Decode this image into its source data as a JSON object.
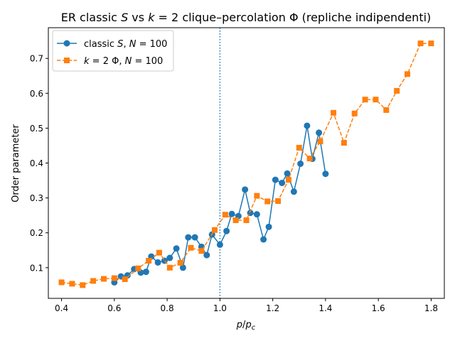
{
  "chart_data": {
    "type": "line",
    "title": "ER classic S vs k = 2 clique–percolation Φ (repliche indipendenti)",
    "title_parts": {
      "a": "ER classic ",
      "b": "S",
      "c": " vs ",
      "d": "k",
      "e": " = 2 clique–percolation Φ (repliche indipendenti)"
    },
    "xlabel": {
      "p": "p",
      "slash": "/",
      "pc_base": "p",
      "pc_sub": "c"
    },
    "ylabel": "Order parameter",
    "xlim": [
      0.35,
      1.85
    ],
    "ylim": [
      0.012,
      0.788
    ],
    "xticks": [
      0.4,
      0.6,
      0.8,
      1.0,
      1.2,
      1.4,
      1.6,
      1.8
    ],
    "xtick_labels": [
      "0.4",
      "0.6",
      "0.8",
      "1.0",
      "1.2",
      "1.4",
      "1.6",
      "1.8"
    ],
    "yticks": [
      0.1,
      0.2,
      0.3,
      0.4,
      0.5,
      0.6,
      0.7
    ],
    "ytick_labels": [
      "0.1",
      "0.2",
      "0.3",
      "0.4",
      "0.5",
      "0.6",
      "0.7"
    ],
    "vline": {
      "x": 1.0,
      "color": "#1f77b4",
      "style": "dotted"
    },
    "grid": false,
    "legend_position": "top-left",
    "series": [
      {
        "legend": {
          "a": "classic ",
          "b": "S",
          "c": ", ",
          "d": "N",
          "e": " = 100"
        },
        "color": "#1f77b4",
        "marker": "circle",
        "linestyle": "solid",
        "x": [
          0.6,
          0.625,
          0.65,
          0.675,
          0.7,
          0.72,
          0.74,
          0.765,
          0.79,
          0.81,
          0.835,
          0.86,
          0.88,
          0.905,
          0.93,
          0.95,
          0.97,
          1.0,
          1.025,
          1.045,
          1.07,
          1.095,
          1.115,
          1.14,
          1.165,
          1.185,
          1.21,
          1.235,
          1.255,
          1.28,
          1.305,
          1.33,
          1.35,
          1.375,
          1.4
        ],
        "y": [
          0.058,
          0.075,
          0.078,
          0.096,
          0.086,
          0.088,
          0.132,
          0.115,
          0.12,
          0.128,
          0.155,
          0.1,
          0.187,
          0.187,
          0.16,
          0.136,
          0.195,
          0.166,
          0.205,
          0.254,
          0.248,
          0.324,
          0.257,
          0.253,
          0.181,
          0.217,
          0.352,
          0.343,
          0.37,
          0.318,
          0.398,
          0.507,
          0.412,
          0.487,
          0.369
        ]
      },
      {
        "legend": {
          "a": "",
          "b": "k",
          "c": " = 2 Φ, ",
          "d": "N",
          "e": " = 100"
        },
        "color": "#ff7f0e",
        "marker": "square",
        "linestyle": "dashed",
        "x": [
          0.4,
          0.44,
          0.48,
          0.52,
          0.56,
          0.6,
          0.64,
          0.69,
          0.73,
          0.77,
          0.81,
          0.85,
          0.89,
          0.93,
          0.98,
          1.02,
          1.06,
          1.1,
          1.14,
          1.18,
          1.22,
          1.26,
          1.3,
          1.34,
          1.38,
          1.43,
          1.47,
          1.51,
          1.55,
          1.59,
          1.63,
          1.67,
          1.71,
          1.76,
          1.8
        ],
        "y": [
          0.058,
          0.054,
          0.05,
          0.062,
          0.068,
          0.07,
          0.067,
          0.098,
          0.12,
          0.143,
          0.1,
          0.114,
          0.157,
          0.148,
          0.208,
          0.252,
          0.236,
          0.236,
          0.306,
          0.29,
          0.291,
          0.352,
          0.444,
          0.413,
          0.462,
          0.544,
          0.458,
          0.542,
          0.582,
          0.582,
          0.552,
          0.607,
          0.655,
          0.743,
          0.743
        ]
      }
    ]
  }
}
